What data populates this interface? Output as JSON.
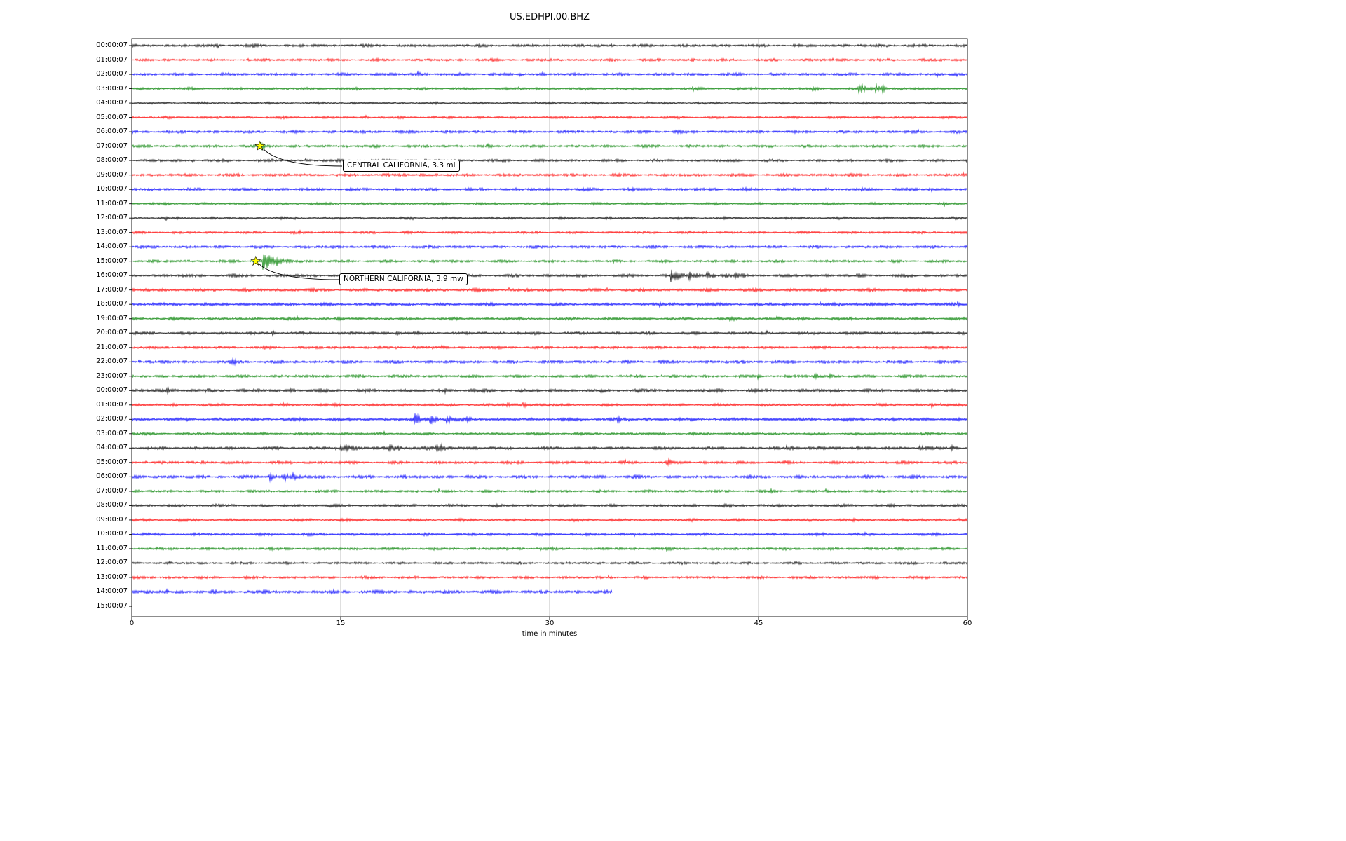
{
  "title": "US.EDHPI.00.BHZ",
  "chart_data": {
    "type": "line",
    "variant": "helicorder-dayplot",
    "station": "US.EDHPI.00.BHZ",
    "xlabel": "time in minutes",
    "x_ticks": [
      "0",
      "15",
      "30",
      "45",
      "60"
    ],
    "xlim": [
      0,
      60
    ],
    "minutes_per_row": 60,
    "grid_color": "#b0b0b0",
    "frame_color": "#000000",
    "background": "#ffffff",
    "marker": {
      "shape": "star",
      "fill": "#ffff00",
      "edge": "#000000"
    },
    "trace_color_cycle": [
      "#000000",
      "#ff0000",
      "#0000ff",
      "#008000"
    ],
    "rows": [
      {
        "label": "00:00:07",
        "color": "#000000",
        "amp": 2.2,
        "bursts": [
          {
            "t": 8.7,
            "a": 3,
            "d": 0.15
          }
        ]
      },
      {
        "label": "01:00:07",
        "color": "#ff0000",
        "amp": 2.0,
        "bursts": [
          {
            "t": 40.2,
            "a": 2,
            "d": 0.1
          }
        ]
      },
      {
        "label": "02:00:07",
        "color": "#0000ff",
        "amp": 2.2,
        "bursts": [
          {
            "t": 20.4,
            "a": 5,
            "d": 0.2
          },
          {
            "t": 27.8,
            "a": 2.5,
            "d": 0.15
          },
          {
            "t": 29.5,
            "a": 2,
            "d": 0.1
          }
        ]
      },
      {
        "label": "03:00:07",
        "color": "#008000",
        "amp": 2.0,
        "bursts": [
          {
            "t": 40.3,
            "a": 3,
            "d": 0.2
          },
          {
            "t": 44.8,
            "a": 2,
            "d": 0.1
          },
          {
            "t": 48.9,
            "a": 3.5,
            "d": 0.15
          },
          {
            "t": 52.2,
            "a": 9,
            "d": 0.35
          },
          {
            "t": 53.4,
            "a": 7,
            "d": 0.25
          },
          {
            "t": 53.9,
            "a": 5,
            "d": 0.2
          }
        ]
      },
      {
        "label": "04:00:07",
        "color": "#000000",
        "amp": 1.8,
        "bursts": []
      },
      {
        "label": "05:00:07",
        "color": "#ff0000",
        "amp": 2.0,
        "bursts": []
      },
      {
        "label": "06:00:07",
        "color": "#0000ff",
        "amp": 2.2,
        "bursts": []
      },
      {
        "label": "07:00:07",
        "color": "#008000",
        "amp": 2.0,
        "bursts": [
          {
            "t": 9.2,
            "a": 4,
            "d": 0.5
          }
        ]
      },
      {
        "label": "08:00:07",
        "color": "#000000",
        "amp": 2.0,
        "bursts": []
      },
      {
        "label": "09:00:07",
        "color": "#ff0000",
        "amp": 2.2,
        "bursts": []
      },
      {
        "label": "10:00:07",
        "color": "#0000ff",
        "amp": 2.3,
        "bursts": []
      },
      {
        "label": "11:00:07",
        "color": "#008000",
        "amp": 2.0,
        "bursts": []
      },
      {
        "label": "12:00:07",
        "color": "#000000",
        "amp": 2.0,
        "bursts": []
      },
      {
        "label": "13:00:07",
        "color": "#ff0000",
        "amp": 2.0,
        "bursts": []
      },
      {
        "label": "14:00:07",
        "color": "#0000ff",
        "amp": 2.2,
        "bursts": [
          {
            "t": 21.3,
            "a": 2,
            "d": 0.1
          }
        ]
      },
      {
        "label": "15:00:07",
        "color": "#008000",
        "amp": 2.0,
        "bursts": [
          {
            "t": 9.4,
            "a": 11,
            "d": 0.8
          },
          {
            "t": 10.3,
            "a": 4,
            "d": 0.4
          }
        ]
      },
      {
        "label": "16:00:07",
        "color": "#000000",
        "amp": 2.2,
        "bursts": [
          {
            "t": 38.7,
            "a": 8,
            "d": 0.5
          },
          {
            "t": 40.0,
            "a": 4,
            "d": 0.4
          },
          {
            "t": 41.3,
            "a": 4,
            "d": 0.3
          },
          {
            "t": 42.3,
            "a": 4,
            "d": 0.3
          },
          {
            "t": 43.2,
            "a": 3,
            "d": 0.3
          }
        ]
      },
      {
        "label": "17:00:07",
        "color": "#ff0000",
        "amp": 2.4,
        "bursts": []
      },
      {
        "label": "18:00:07",
        "color": "#0000ff",
        "amp": 2.4,
        "bursts": [
          {
            "t": 37.9,
            "a": 3,
            "d": 0.2
          },
          {
            "t": 40.6,
            "a": 4,
            "d": 0.2
          },
          {
            "t": 46.8,
            "a": 2.5,
            "d": 0.15
          },
          {
            "t": 52.0,
            "a": 3,
            "d": 0.2
          },
          {
            "t": 59.3,
            "a": 4,
            "d": 0.25
          }
        ]
      },
      {
        "label": "19:00:07",
        "color": "#008000",
        "amp": 2.2,
        "bursts": [
          {
            "t": 42.9,
            "a": 3,
            "d": 0.2
          },
          {
            "t": 46.3,
            "a": 3.5,
            "d": 0.2
          }
        ]
      },
      {
        "label": "20:00:07",
        "color": "#000000",
        "amp": 2.2,
        "bursts": [
          {
            "t": 10.1,
            "a": 3.5,
            "d": 0.15
          },
          {
            "t": 19.0,
            "a": 3,
            "d": 0.15
          }
        ]
      },
      {
        "label": "21:00:07",
        "color": "#ff0000",
        "amp": 2.2,
        "bursts": [
          {
            "t": 14.4,
            "a": 3,
            "d": 0.15
          },
          {
            "t": 22.2,
            "a": 3.5,
            "d": 0.15
          },
          {
            "t": 58.3,
            "a": 3.5,
            "d": 0.2
          }
        ]
      },
      {
        "label": "22:00:07",
        "color": "#0000ff",
        "amp": 2.4,
        "bursts": [
          {
            "t": 0.5,
            "a": 3,
            "d": 0.2
          },
          {
            "t": 7.2,
            "a": 3.5,
            "d": 0.25
          }
        ]
      },
      {
        "label": "23:00:07",
        "color": "#008000",
        "amp": 2.2,
        "bursts": [
          {
            "t": 44.9,
            "a": 3,
            "d": 0.15
          },
          {
            "t": 49.0,
            "a": 4,
            "d": 0.2
          },
          {
            "t": 50.1,
            "a": 3,
            "d": 0.15
          }
        ]
      },
      {
        "label": "00:00:07",
        "color": "#000000",
        "amp": 2.6,
        "bursts": [
          {
            "t": 2.5,
            "a": 4,
            "d": 0.2
          },
          {
            "t": 11.4,
            "a": 3,
            "d": 0.15
          },
          {
            "t": 22.5,
            "a": 2.5,
            "d": 0.15
          }
        ]
      },
      {
        "label": "01:00:07",
        "color": "#ff0000",
        "amp": 2.2,
        "bursts": [
          {
            "t": 10.8,
            "a": 3,
            "d": 0.15
          },
          {
            "t": 21.0,
            "a": 4.5,
            "d": 0.2
          },
          {
            "t": 26.9,
            "a": 5,
            "d": 0.25
          },
          {
            "t": 28.1,
            "a": 4,
            "d": 0.2
          },
          {
            "t": 29.3,
            "a": 3.5,
            "d": 0.2
          },
          {
            "t": 57.4,
            "a": 2.5,
            "d": 0.15
          }
        ]
      },
      {
        "label": "02:00:07",
        "color": "#0000ff",
        "amp": 2.4,
        "bursts": [
          {
            "t": 20.3,
            "a": 7,
            "d": 0.5
          },
          {
            "t": 21.4,
            "a": 6,
            "d": 0.4
          },
          {
            "t": 22.6,
            "a": 4,
            "d": 0.3
          },
          {
            "t": 24.1,
            "a": 3,
            "d": 0.3
          },
          {
            "t": 34.9,
            "a": 3,
            "d": 0.2
          }
        ]
      },
      {
        "label": "03:00:07",
        "color": "#008000",
        "amp": 2.0,
        "bursts": []
      },
      {
        "label": "04:00:07",
        "color": "#000000",
        "amp": 2.2,
        "bursts": [
          {
            "t": 15.0,
            "a": 3,
            "d": 1.2
          },
          {
            "t": 18.5,
            "a": 2.5,
            "d": 1.5
          },
          {
            "t": 21.8,
            "a": 3,
            "d": 0.8
          },
          {
            "t": 47.0,
            "a": 2,
            "d": 1.0
          },
          {
            "t": 56.5,
            "a": 2.5,
            "d": 0.6
          },
          {
            "t": 58.8,
            "a": 3,
            "d": 0.3
          }
        ]
      },
      {
        "label": "05:00:07",
        "color": "#ff0000",
        "amp": 2.2,
        "bursts": [
          {
            "t": 5.0,
            "a": 2.5,
            "d": 0.2
          },
          {
            "t": 38.4,
            "a": 4.5,
            "d": 0.25
          }
        ]
      },
      {
        "label": "06:00:07",
        "color": "#0000ff",
        "amp": 2.4,
        "bursts": [
          {
            "t": 9.9,
            "a": 5,
            "d": 0.4
          },
          {
            "t": 10.9,
            "a": 6,
            "d": 0.35
          },
          {
            "t": 11.5,
            "a": 4,
            "d": 0.3
          }
        ]
      },
      {
        "label": "07:00:07",
        "color": "#008000",
        "amp": 2.0,
        "bursts": [
          {
            "t": 45.9,
            "a": 2.5,
            "d": 0.15
          }
        ]
      },
      {
        "label": "08:00:07",
        "color": "#000000",
        "amp": 2.2,
        "bursts": []
      },
      {
        "label": "09:00:07",
        "color": "#ff0000",
        "amp": 2.2,
        "bursts": []
      },
      {
        "label": "10:00:07",
        "color": "#0000ff",
        "amp": 2.2,
        "bursts": []
      },
      {
        "label": "11:00:07",
        "color": "#008000",
        "amp": 2.2,
        "bursts": []
      },
      {
        "label": "12:00:07",
        "color": "#000000",
        "amp": 1.9,
        "bursts": []
      },
      {
        "label": "13:00:07",
        "color": "#ff0000",
        "amp": 2.0,
        "bursts": [
          {
            "t": 34.2,
            "a": 3,
            "d": 0.15
          }
        ]
      },
      {
        "label": "14:00:07",
        "color": "#0000ff",
        "amp": 2.6,
        "end": 34.5,
        "bursts": []
      },
      {
        "label": "15:00:07",
        "color": "#008000",
        "amp": 0,
        "end": 0,
        "bursts": []
      }
    ],
    "events": [
      {
        "label": "CENTRAL CALIFORNIA, 3.3 ml",
        "row": 7,
        "minute": 9.2,
        "box": {
          "x": 489,
          "y": 228
        }
      },
      {
        "label": "NORTHERN CALIFORNIA, 3.9 mw",
        "row": 15,
        "minute": 8.9,
        "box": {
          "x": 484,
          "y": 390
        }
      }
    ]
  }
}
